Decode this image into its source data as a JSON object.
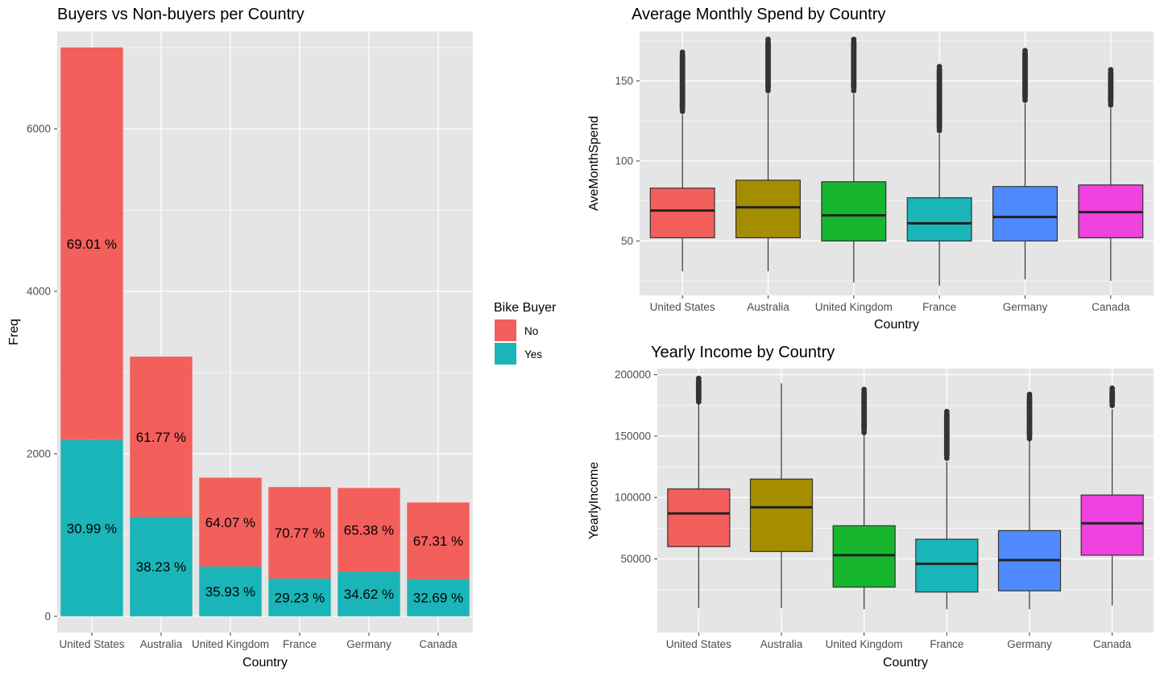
{
  "colors": {
    "panel_bg": "#e5e5e5",
    "grid": "#ffffff",
    "no": "#f35f5b",
    "yes": "#1ab5b8",
    "box_fills": [
      "#f35f5b",
      "#a58d00",
      "#16b72f",
      "#1ab5b8",
      "#4f8bff",
      "#ef42de"
    ],
    "outlier": "#333333",
    "median": "#222222"
  },
  "legend": {
    "title": "Bike Buyer",
    "items": [
      {
        "label": "No",
        "color": "#f35f5b"
      },
      {
        "label": "Yes",
        "color": "#1ab5b8"
      }
    ]
  },
  "chart_data": [
    {
      "type": "bar",
      "stacked": true,
      "title": "Buyers vs Non-buyers per Country",
      "xlabel": "Country",
      "ylabel": "Freq",
      "ylim": [
        -200,
        7200
      ],
      "yticks": [
        0,
        2000,
        4000,
        6000
      ],
      "categories": [
        "United States",
        "Australia",
        "United Kingdom",
        "France",
        "Germany",
        "Canada"
      ],
      "series": [
        {
          "name": "Yes",
          "values": [
            2170,
            1222,
            613,
            465,
            547,
            458
          ],
          "labels": [
            "30.99 %",
            "38.23 %",
            "35.93 %",
            "29.23 %",
            "34.62 %",
            "32.69 %"
          ]
        },
        {
          "name": "No",
          "values": [
            4832,
            1974,
            1093,
            1126,
            1033,
            943
          ],
          "labels": [
            "69.01 %",
            "61.77 %",
            "64.07 %",
            "70.77 %",
            "65.38 %",
            "67.31 %"
          ]
        }
      ],
      "legend": "right",
      "grid": true
    },
    {
      "type": "box",
      "title": "Average Monthly Spend by Country",
      "xlabel": "Country",
      "ylabel": "AveMonthSpend",
      "ylim": [
        16,
        181
      ],
      "yticks": [
        50,
        100,
        150
      ],
      "categories": [
        "United States",
        "Australia",
        "United Kingdom",
        "France",
        "Germany",
        "Canada"
      ],
      "boxes": [
        {
          "min": 31,
          "q1": 52,
          "median": 69,
          "q3": 83,
          "max": 129,
          "outliers": [
            131,
            135,
            140,
            145,
            150,
            155,
            160,
            164,
            168
          ]
        },
        {
          "min": 31,
          "q1": 52,
          "median": 71,
          "q3": 88,
          "max": 142,
          "outliers": [
            144,
            148,
            153,
            158,
            163,
            168,
            172,
            176
          ]
        },
        {
          "min": 24,
          "q1": 50,
          "median": 66,
          "q3": 87,
          "max": 142,
          "outliers": [
            144,
            148,
            153,
            158,
            163,
            168,
            172,
            176
          ]
        },
        {
          "min": 22,
          "q1": 50,
          "median": 61,
          "q3": 77,
          "max": 117,
          "outliers": [
            119,
            124,
            130,
            136,
            142,
            148,
            154,
            159
          ]
        },
        {
          "min": 26,
          "q1": 50,
          "median": 65,
          "q3": 84,
          "max": 136,
          "outliers": [
            138,
            143,
            148,
            153,
            158,
            163,
            167,
            169
          ]
        },
        {
          "min": 25,
          "q1": 52,
          "median": 68,
          "q3": 85,
          "max": 133,
          "outliers": [
            135,
            140,
            145,
            150,
            154,
            157
          ]
        }
      ],
      "grid": true
    },
    {
      "type": "box",
      "title": "Yearly Income by Country",
      "xlabel": "Country",
      "ylabel": "YearlyIncome",
      "ylim": [
        -10000,
        205000
      ],
      "yticks": [
        50000,
        100000,
        150000,
        200000
      ],
      "categories": [
        "United States",
        "Australia",
        "United Kingdom",
        "France",
        "Germany",
        "Canada"
      ],
      "boxes": [
        {
          "min": 10000,
          "q1": 60000,
          "median": 87000,
          "q3": 107000,
          "max": 176000,
          "outliers": [
            178000,
            182000,
            186000,
            190000,
            194000,
            197000
          ]
        },
        {
          "min": 10000,
          "q1": 56000,
          "median": 92000,
          "q3": 115000,
          "max": 193000,
          "outliers": []
        },
        {
          "min": 9000,
          "q1": 27000,
          "median": 53000,
          "q3": 77000,
          "max": 151000,
          "outliers": [
            153000,
            158000,
            163000,
            168000,
            173000,
            178000,
            183000,
            188000
          ]
        },
        {
          "min": 9000,
          "q1": 23000,
          "median": 46000,
          "q3": 66000,
          "max": 129000,
          "outliers": [
            132000,
            136000,
            145000,
            150000,
            156000,
            162000,
            167000,
            170000
          ]
        },
        {
          "min": 9000,
          "q1": 24000,
          "median": 49000,
          "q3": 73000,
          "max": 146000,
          "outliers": [
            148000,
            153000,
            158000,
            163000,
            168000,
            173000,
            177000,
            184000
          ]
        },
        {
          "min": 12000,
          "q1": 53000,
          "median": 79000,
          "q3": 102000,
          "max": 172000,
          "outliers": [
            175000,
            180000,
            185000,
            189000
          ]
        }
      ],
      "grid": true
    }
  ]
}
